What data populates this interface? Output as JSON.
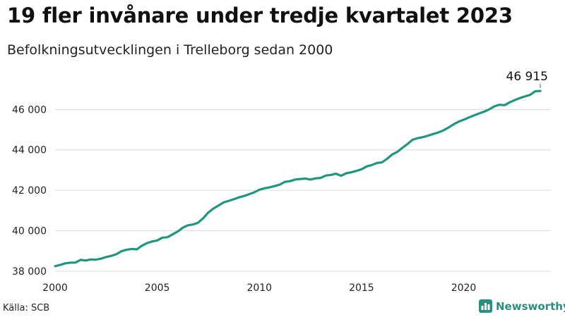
{
  "header": {
    "title": "19 fler invånare under tredje kvartalet 2023",
    "subtitle": "Befolkningsutvecklingen i Trelleborg sedan 2000"
  },
  "footer": {
    "source": "Källa: SCB",
    "brand": "Newsworthy"
  },
  "colors": {
    "line": "#1f9682",
    "grid": "#d9d9d9",
    "text": "#222222",
    "brand": "#2a8f80"
  },
  "chart_data": {
    "type": "line",
    "title": "19 fler invånare under tredje kvartalet 2023",
    "subtitle": "Befolkningsutvecklingen i Trelleborg sedan 2000",
    "xlabel": "",
    "ylabel": "",
    "xlim": [
      2000,
      2023.75
    ],
    "ylim": [
      38000,
      47300
    ],
    "grid": true,
    "x_ticks": [
      2000,
      2005,
      2010,
      2015,
      2020
    ],
    "x_tick_labels": [
      "2000",
      "2005",
      "2010",
      "2015",
      "2020"
    ],
    "y_ticks": [
      38000,
      40000,
      42000,
      44000,
      46000
    ],
    "y_tick_labels": [
      "38 000",
      "40 000",
      "42 000",
      "44 000",
      "46 000"
    ],
    "annotation": {
      "x": 2023.75,
      "y": 46915,
      "label": "46 915"
    },
    "series": [
      {
        "x": [
          2000,
          2000.25,
          2000.5,
          2000.75,
          2001,
          2001.25,
          2001.5,
          2001.75,
          2002,
          2002.25,
          2002.5,
          2002.75,
          2003,
          2003.25,
          2003.5,
          2003.75,
          2004,
          2004.25,
          2004.5,
          2004.75,
          2005,
          2005.25,
          2005.5,
          2005.75,
          2006,
          2006.25,
          2006.5,
          2006.75,
          2007,
          2007.25,
          2007.5,
          2007.75,
          2008,
          2008.25,
          2008.5,
          2008.75,
          2009,
          2009.25,
          2009.5,
          2009.75,
          2010,
          2010.25,
          2010.5,
          2010.75,
          2011,
          2011.25,
          2011.5,
          2011.75,
          2012,
          2012.25,
          2012.5,
          2012.75,
          2013,
          2013.25,
          2013.5,
          2013.75,
          2014,
          2014.25,
          2014.5,
          2014.75,
          2015,
          2015.25,
          2015.5,
          2015.75,
          2016,
          2016.25,
          2016.5,
          2016.75,
          2017,
          2017.25,
          2017.5,
          2017.75,
          2018,
          2018.25,
          2018.5,
          2018.75,
          2019,
          2019.25,
          2019.5,
          2019.75,
          2020,
          2020.25,
          2020.5,
          2020.75,
          2021,
          2021.25,
          2021.5,
          2021.75,
          2022,
          2022.25,
          2022.5,
          2022.75,
          2023,
          2023.25,
          2023.5,
          2023.75
        ],
        "values": [
          38250,
          38310,
          38390,
          38420,
          38430,
          38560,
          38530,
          38580,
          38570,
          38620,
          38700,
          38760,
          38840,
          38990,
          39060,
          39100,
          39080,
          39260,
          39390,
          39470,
          39520,
          39660,
          39680,
          39820,
          39960,
          40150,
          40270,
          40310,
          40400,
          40620,
          40900,
          41100,
          41250,
          41400,
          41480,
          41560,
          41650,
          41720,
          41810,
          41900,
          42030,
          42100,
          42150,
          42210,
          42280,
          42420,
          42450,
          42530,
          42560,
          42580,
          42530,
          42590,
          42610,
          42730,
          42760,
          42820,
          42720,
          42840,
          42890,
          42960,
          43040,
          43180,
          43250,
          43350,
          43380,
          43560,
          43770,
          43900,
          44100,
          44290,
          44500,
          44580,
          44630,
          44700,
          44780,
          44860,
          44960,
          45100,
          45260,
          45390,
          45490,
          45600,
          45700,
          45800,
          45890,
          46000,
          46150,
          46230,
          46210,
          46350,
          46460,
          46560,
          46640,
          46720,
          46896,
          46915
        ]
      }
    ]
  }
}
